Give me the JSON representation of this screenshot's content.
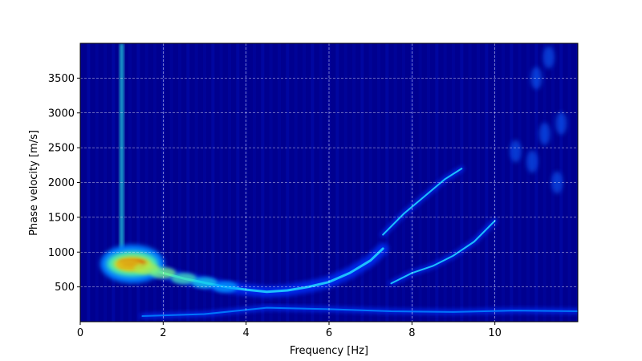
{
  "chart_data": {
    "type": "heatmap",
    "title": "",
    "xlabel": "Frequency [Hz]",
    "ylabel": "Phase velocity [m/s]",
    "xlim": [
      0,
      12
    ],
    "ylim": [
      0,
      4000
    ],
    "xticks": [
      0,
      2,
      4,
      6,
      8,
      10
    ],
    "yticks": [
      500,
      1000,
      1500,
      2000,
      2500,
      3000,
      3500
    ],
    "xtick_labels": [
      "0",
      "2",
      "4",
      "6",
      "8",
      "10"
    ],
    "ytick_labels": [
      "500",
      "1000",
      "1500",
      "2000",
      "2500",
      "3000",
      "3500"
    ],
    "grid": true,
    "colormap": "jet",
    "colors": {
      "background": "#00008f",
      "frame": "#000000",
      "grid": "#ffffff"
    },
    "ridges": [
      {
        "label": "fundamental",
        "points": [
          [
            0.9,
            850
          ],
          [
            1.2,
            820
          ],
          [
            1.6,
            760
          ],
          [
            2.0,
            700
          ],
          [
            2.5,
            620
          ],
          [
            3.0,
            560
          ],
          [
            3.5,
            500
          ],
          [
            4.0,
            460
          ],
          [
            4.5,
            430
          ],
          [
            5.0,
            450
          ],
          [
            5.5,
            500
          ],
          [
            6.0,
            570
          ],
          [
            6.5,
            700
          ],
          [
            7.0,
            880
          ],
          [
            7.3,
            1050
          ]
        ],
        "peak": [
          1.1,
          830
        ]
      },
      {
        "label": "higher-mode-1",
        "points": [
          [
            7.5,
            550
          ],
          [
            8.0,
            700
          ],
          [
            8.5,
            800
          ],
          [
            9.0,
            950
          ],
          [
            9.5,
            1150
          ],
          [
            10.0,
            1450
          ]
        ]
      },
      {
        "label": "higher-mode-2",
        "points": [
          [
            7.3,
            1250
          ],
          [
            7.8,
            1550
          ],
          [
            8.3,
            1800
          ],
          [
            8.8,
            2050
          ],
          [
            9.2,
            2200
          ]
        ]
      },
      {
        "label": "low-velocity-band",
        "points": [
          [
            1.5,
            80
          ],
          [
            3.0,
            110
          ],
          [
            4.5,
            200
          ],
          [
            6.0,
            180
          ],
          [
            7.5,
            150
          ],
          [
            9.0,
            140
          ],
          [
            10.5,
            160
          ],
          [
            12.0,
            150
          ]
        ]
      }
    ],
    "features": [
      {
        "label": "vertical-streak",
        "x": 1.0,
        "y_range": [
          700,
          4000
        ],
        "level": 0.45
      },
      {
        "label": "upper-right-blobs",
        "points": [
          [
            10.5,
            2450
          ],
          [
            10.9,
            2300
          ],
          [
            11.2,
            2700
          ],
          [
            11.6,
            2850
          ],
          [
            11.0,
            3500
          ],
          [
            11.3,
            3800
          ],
          [
            11.5,
            2000
          ]
        ]
      }
    ]
  }
}
